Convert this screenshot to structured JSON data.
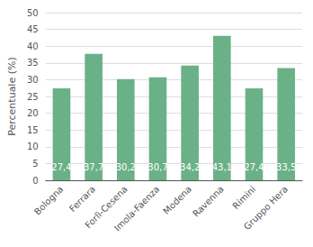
{
  "chart_data": {
    "type": "bar",
    "ylabel": "Percentuale (%)",
    "categories": [
      "Bologna",
      "Ferrara",
      "Forlì-Cesena",
      "Imola-Faenza",
      "Modena",
      "Ravenna",
      "Rimini",
      "Gruppo Hera"
    ],
    "values": [
      27.4,
      37.7,
      30.2,
      30.7,
      34.2,
      43.1,
      27.4,
      33.5
    ],
    "value_labels": [
      "27,4",
      "37,7",
      "30,2",
      "30,7",
      "34,2",
      "43,1",
      "27,4",
      "33,5"
    ],
    "color": "#6ab187",
    "ylim": [
      0,
      50
    ],
    "yticks": [
      0,
      5,
      10,
      15,
      20,
      25,
      30,
      35,
      40,
      45,
      50
    ],
    "grid": true,
    "data_labels": true
  }
}
